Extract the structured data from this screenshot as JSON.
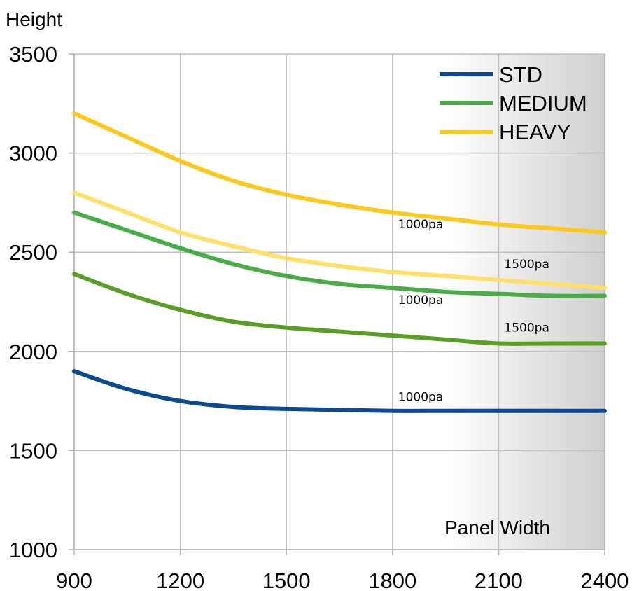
{
  "chart_data": {
    "type": "line",
    "title": "",
    "xlabel": "Panel Width",
    "ylabel": "Height",
    "xlim": [
      900,
      2400
    ],
    "ylim": [
      1000,
      3500
    ],
    "x_ticks": [
      "900",
      "1200",
      "1500",
      "1800",
      "2100",
      "2400"
    ],
    "y_ticks": [
      "1000",
      "1500",
      "2000",
      "2500",
      "3000",
      "3500"
    ],
    "grid": true,
    "legend": {
      "placement": "top-right",
      "entries": [
        {
          "name": "STD",
          "color": "#0b4a8c"
        },
        {
          "name": "MEDIUM",
          "color": "#4aac48"
        },
        {
          "name": "HEAVY",
          "color": "#fcc81c"
        }
      ]
    },
    "series": [
      {
        "group": "HEAVY",
        "label": "1000pa",
        "color": "#fcc81c",
        "x": [
          900,
          1050,
          1200,
          1350,
          1500,
          1650,
          1800,
          1950,
          2100,
          2250,
          2400
        ],
        "y": [
          3200,
          3080,
          2960,
          2860,
          2790,
          2740,
          2700,
          2670,
          2640,
          2620,
          2600
        ]
      },
      {
        "group": "HEAVY",
        "label": "1500pa",
        "color": "#fde06a",
        "x": [
          900,
          1050,
          1200,
          1350,
          1500,
          1650,
          1800,
          1950,
          2100,
          2250,
          2400
        ],
        "y": [
          2800,
          2700,
          2600,
          2530,
          2470,
          2430,
          2400,
          2380,
          2360,
          2340,
          2320
        ]
      },
      {
        "group": "MEDIUM",
        "label": "1000pa",
        "color": "#4aac48",
        "x": [
          900,
          1050,
          1200,
          1350,
          1500,
          1650,
          1800,
          1950,
          2100,
          2250,
          2400
        ],
        "y": [
          2700,
          2610,
          2520,
          2440,
          2380,
          2340,
          2320,
          2300,
          2290,
          2280,
          2280
        ]
      },
      {
        "group": "MEDIUM",
        "label": "1500pa",
        "color": "#5a9e28",
        "x": [
          900,
          1050,
          1200,
          1350,
          1500,
          1650,
          1800,
          1950,
          2100,
          2250,
          2400
        ],
        "y": [
          2390,
          2290,
          2210,
          2150,
          2120,
          2100,
          2080,
          2060,
          2040,
          2040,
          2040
        ]
      },
      {
        "group": "STD",
        "label": "1000pa",
        "color": "#0b4a8c",
        "x": [
          900,
          1050,
          1200,
          1350,
          1500,
          1650,
          1800,
          1950,
          2100,
          2250,
          2400
        ],
        "y": [
          1900,
          1810,
          1750,
          1720,
          1710,
          1705,
          1700,
          1700,
          1700,
          1700,
          1700
        ]
      }
    ],
    "annotations": [
      {
        "text": "1000pa",
        "x": 1800,
        "y": 2620
      },
      {
        "text": "1500pa",
        "x": 2100,
        "y": 2420
      },
      {
        "text": "1000pa",
        "x": 1800,
        "y": 2240
      },
      {
        "text": "1500pa",
        "x": 2100,
        "y": 2100
      },
      {
        "text": "1000pa",
        "x": 1800,
        "y": 1750
      }
    ]
  }
}
